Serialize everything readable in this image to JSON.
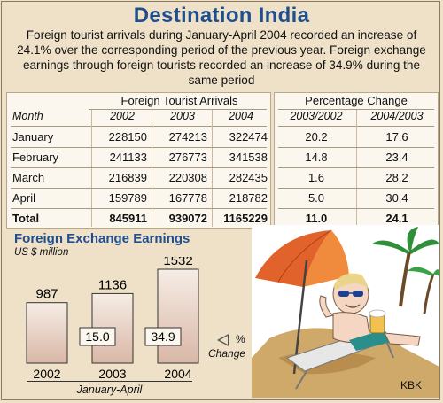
{
  "title": "Destination India",
  "intro": "Foreign tourist arrivals during January-April 2004 recorded an increase of 24.1% over the corresponding period of the previous year. Foreign exchange earnings through foreign tourists recorded an increase of 34.9% during the same period",
  "arrivals_table": {
    "group_header": "Foreign Tourist Arrivals",
    "month_header": "Month",
    "year_headers": [
      "2002",
      "2003",
      "2004"
    ],
    "rows": [
      {
        "month": "January",
        "values": [
          "228150",
          "274213",
          "322474"
        ]
      },
      {
        "month": "February",
        "values": [
          "241133",
          "276773",
          "341538"
        ]
      },
      {
        "month": "March",
        "values": [
          "216839",
          "220308",
          "282435"
        ]
      },
      {
        "month": "April",
        "values": [
          "159789",
          "167778",
          "218782"
        ]
      }
    ],
    "total": {
      "month": "Total",
      "values": [
        "845911",
        "939072",
        "1165229"
      ]
    }
  },
  "change_table": {
    "group_header": "Percentage Change",
    "period_headers": [
      "2003/2002",
      "2004/2003"
    ],
    "rows": [
      [
        "20.2",
        "17.6"
      ],
      [
        "14.8",
        "23.4"
      ],
      [
        "1.6",
        "28.2"
      ],
      [
        "5.0",
        "30.4"
      ]
    ],
    "total": [
      "11.0",
      "24.1"
    ]
  },
  "earnings": {
    "title": "Foreign Exchange Earnings",
    "unit": "US $ million",
    "change_label": "Change",
    "pct_sign": "%",
    "period_label": "January-April"
  },
  "chart_data": {
    "type": "bar",
    "title": "Foreign Exchange Earnings",
    "ylabel": "US $ million",
    "xlabel": "January-April",
    "categories": [
      "2002",
      "2003",
      "2004"
    ],
    "values": [
      987,
      1136,
      1532
    ],
    "pct_change": [
      null,
      15.0,
      34.9
    ],
    "ylim": [
      0,
      1532
    ]
  },
  "cartoon_credit": "KBK",
  "colors": {
    "title": "#1f4f8f",
    "background": "#efe1c8",
    "table_bg": "#fbf6ee",
    "bar_top": "#f6ede6",
    "bar_bottom": "#d9b7a6",
    "umbrella": "#e2622b",
    "sand": "#cfa96a",
    "sky": "#ffffff"
  }
}
